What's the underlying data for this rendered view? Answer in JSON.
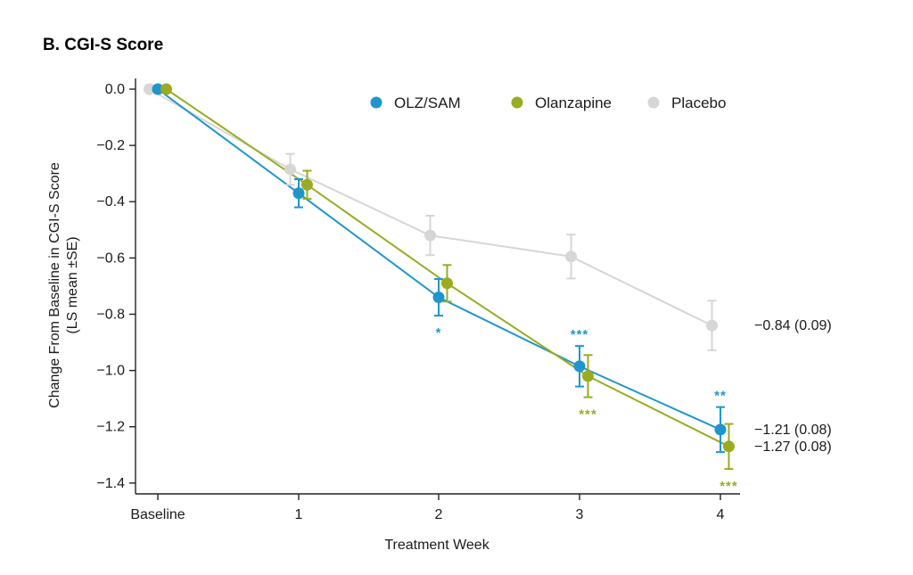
{
  "chart_data": {
    "type": "line",
    "title": "B. CGI-S Score",
    "xlabel": "Treatment Week",
    "ylabel_line1": "Change From Baseline in CGI-S Score",
    "ylabel_line2": "(LS mean ±SE)",
    "categories": [
      "Baseline",
      "1",
      "2",
      "3",
      "4"
    ],
    "ylim": [
      -1.45,
      0.02
    ],
    "yticks": [
      0.0,
      -0.2,
      -0.4,
      -0.6,
      -0.8,
      -1.0,
      -1.2,
      -1.4
    ],
    "ytick_labels": [
      "0.0",
      "−0.2",
      "−0.4",
      "−0.6",
      "−0.8",
      "−1.0",
      "−1.2",
      "−1.4"
    ],
    "legend_position": "top",
    "series": [
      {
        "name": "Placebo",
        "color": "#d6d6d6",
        "offset": -0.06,
        "values": [
          0.0,
          -0.285,
          -0.52,
          -0.595,
          -0.84
        ],
        "se": [
          0.0,
          0.055,
          0.07,
          0.078,
          0.088
        ],
        "end_label": "−0.84 (0.09)",
        "significance": [
          "",
          "",
          "",
          "",
          ""
        ]
      },
      {
        "name": "OLZ/SAM",
        "color": "#1e96cc",
        "offset": 0.0,
        "values": [
          0.0,
          -0.37,
          -0.74,
          -0.985,
          -1.21
        ],
        "se": [
          0.0,
          0.05,
          0.065,
          0.072,
          0.08
        ],
        "end_label": "−1.21 (0.08)",
        "significance": [
          "",
          "",
          "*",
          "***",
          "**"
        ]
      },
      {
        "name": "Olanzapine",
        "color": "#9aab22",
        "offset": 0.06,
        "values": [
          0.0,
          -0.34,
          -0.69,
          -1.02,
          -1.27
        ],
        "se": [
          0.0,
          0.05,
          0.065,
          0.075,
          0.08
        ],
        "end_label": "−1.27 (0.08)",
        "significance": [
          "",
          "",
          "",
          "***",
          "***"
        ]
      }
    ],
    "legend_order": [
      "OLZ/SAM",
      "Olanzapine",
      "Placebo"
    ]
  }
}
